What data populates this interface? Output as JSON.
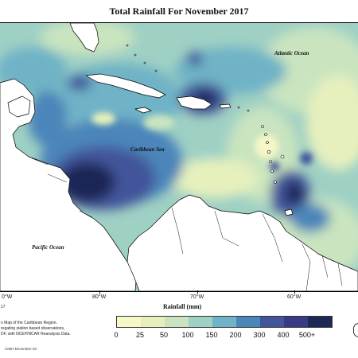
{
  "title": "Total Rainfall For November 2017",
  "ocean_labels": {
    "atlantic": "Atlantic Ocean",
    "caribbean": "Caribbean Sea",
    "pacific": "Pacific Ocean"
  },
  "longitude_labels": [
    "0°W",
    "80°W",
    "70°W",
    "60°W"
  ],
  "axis_title": "Rainfall (mm)",
  "legend": {
    "labels": [
      "0",
      "25",
      "50",
      "100",
      "150",
      "200",
      "300",
      "400",
      "500+"
    ],
    "colors": [
      "#f7f7c8",
      "#e6f0bd",
      "#c9e4bf",
      "#9fd0c4",
      "#6fb3c6",
      "#4c85ba",
      "#42559a",
      "#3a3a84",
      "#1c2856"
    ]
  },
  "footnote": {
    "number": "17",
    "lines": [
      "n Map of the Caribbean Region.",
      "regating station based observations,",
      "DF, with NCEP/NCAR Reanalysis Data."
    ]
  },
  "credit": "CIMH December-20",
  "colors": {
    "land": "#ffffff",
    "coast": "#000000",
    "border": "#111111"
  }
}
